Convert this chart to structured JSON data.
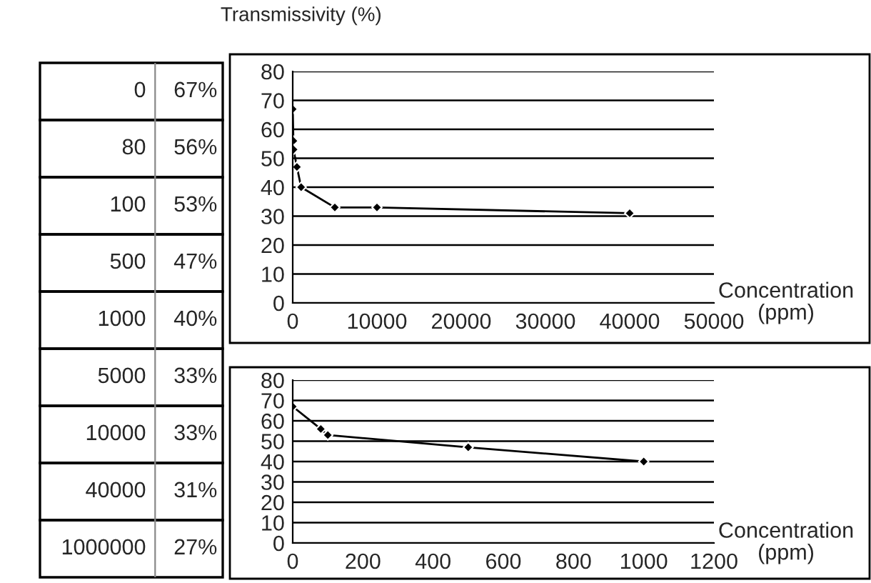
{
  "chart_data": [
    {
      "type": "other",
      "annotations": [
        "0",
        "67%",
        "80",
        "56%",
        "100",
        "53%",
        "500",
        "47%",
        "1000",
        "40%",
        "5000",
        "33%",
        "10000",
        "33%",
        "40000",
        "31%",
        "1000000",
        "27%"
      ]
    },
    {
      "type": "line",
      "ylabel": "Transmissivity (%)",
      "xlabel": "Concentration\n(ppm)",
      "x": [
        0,
        80,
        100,
        500,
        1000,
        5000,
        10000,
        40000
      ],
      "series": [
        {
          "color": "#000000",
          "values": [
            67,
            56,
            53,
            47,
            40,
            33,
            33,
            31
          ]
        }
      ],
      "xlim": [
        0,
        50000
      ],
      "xticks": [
        0,
        10000,
        20000,
        30000,
        40000,
        50000
      ],
      "ylim": [
        0,
        80
      ],
      "yticks": [
        0,
        10,
        20,
        30,
        40,
        50,
        60,
        70,
        80
      ],
      "grid": "y",
      "marker": "diamond",
      "line_style": "solid",
      "legend": false
    },
    {
      "type": "line",
      "xlabel": "Concentration\n(ppm)",
      "x": [
        0,
        80,
        100,
        500,
        1000
      ],
      "series": [
        {
          "color": "#000000",
          "values": [
            67,
            56,
            53,
            47,
            40
          ]
        }
      ],
      "xlim": [
        0,
        1200
      ],
      "xticks": [
        0,
        200,
        400,
        600,
        800,
        1000,
        1200
      ],
      "ylim": [
        0,
        80
      ],
      "yticks": [
        0,
        10,
        20,
        30,
        40,
        50,
        60,
        70,
        80
      ],
      "grid": "y",
      "marker": "diamond",
      "line_style": "solid",
      "legend": false
    }
  ]
}
